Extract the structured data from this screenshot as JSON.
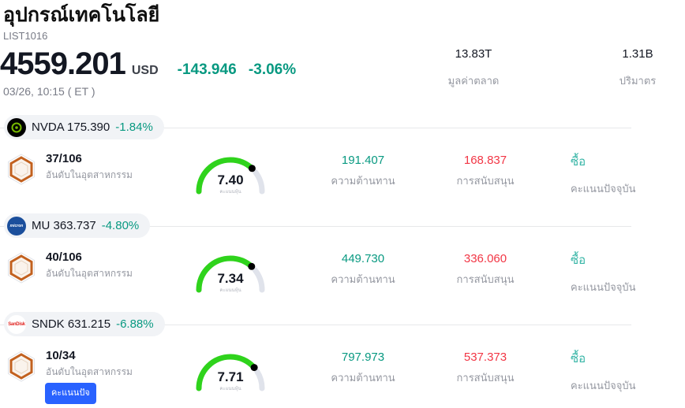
{
  "header": {
    "title": "อุปกรณ์เทคโนโลยี",
    "symbol_code": "LIST1016",
    "price": "4559.201",
    "currency": "USD",
    "change": "-143.946",
    "change_percent": "-3.06%",
    "datetime": "03/26, 10:15 ( ET )",
    "stats": [
      {
        "value": "13.83T",
        "label": "มูลค่าตลาด"
      },
      {
        "value": "1.31B",
        "label": "ปริมาตร"
      }
    ]
  },
  "column_labels": {
    "rank": "อันดับในอุตสาหกรรม",
    "gauge": "คะแนนหุ้น",
    "resistance": "ความต้านทาน",
    "support": "การสนับสนุน",
    "signal": "คะแนนปัจจุบัน"
  },
  "tooltip": {
    "text": "คะแนนปัจ"
  },
  "colors": {
    "positive_teal": "#089981",
    "negative_red": "#f23645",
    "buy_teal": "#36b5a6",
    "gauge_green": "#2fd31c",
    "gauge_track": "#e0e3eb",
    "hex_orange": "#c2611f",
    "nvidia_green": "#76b900",
    "micron_blue": "#1b4f9c",
    "sandisk_red": "#e02724",
    "tooltip_blue": "#2962ff",
    "label_gray": "#9598a1"
  },
  "rows": [
    {
      "ticker": "NVDA",
      "ticker_price": "NVDA 175.390",
      "change": "-1.84%",
      "logo": "nvidia-logo",
      "rank": "37/106",
      "score": "7.40",
      "resistance": "191.407",
      "support": "168.837",
      "signal": "ซื้อ"
    },
    {
      "ticker": "MU",
      "ticker_price": "MU 363.737",
      "change": "-4.80%",
      "logo": "micron-logo",
      "rank": "40/106",
      "score": "7.34",
      "resistance": "449.730",
      "support": "336.060",
      "signal": "ซื้อ"
    },
    {
      "ticker": "SNDK",
      "ticker_price": "SNDK 631.215",
      "change": "-6.88%",
      "logo": "sandisk-logo",
      "rank": "10/34",
      "score": "7.71",
      "resistance": "797.973",
      "support": "537.373",
      "signal": "ซื้อ"
    }
  ]
}
